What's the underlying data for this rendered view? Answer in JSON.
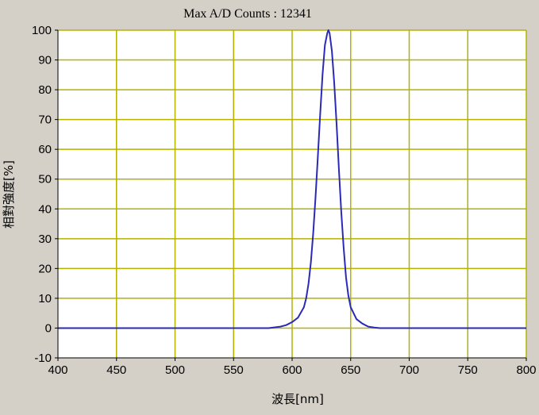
{
  "chart_data": {
    "type": "line",
    "title": "Max A/D Counts : 12341",
    "xlabel": "波長[nm]",
    "ylabel": "相對強度[%]",
    "xlim": [
      400,
      800
    ],
    "ylim": [
      -10,
      100
    ],
    "x_ticks": [
      400,
      450,
      500,
      550,
      600,
      650,
      700,
      750,
      800
    ],
    "y_ticks": [
      -10,
      0,
      10,
      20,
      30,
      40,
      50,
      60,
      70,
      80,
      90,
      100
    ],
    "grid": true,
    "colors": {
      "background": "#d4d0c8",
      "plot_area": "#ffffff",
      "grid": "#b3b300",
      "line": "#2a2ab8"
    },
    "series": [
      {
        "x": [
          400,
          450,
          500,
          540,
          560,
          580,
          590,
          595,
          600,
          605,
          610,
          612,
          614,
          616,
          618,
          620,
          622,
          624,
          626,
          628,
          630,
          631,
          632,
          634,
          636,
          638,
          640,
          642,
          644,
          646,
          648,
          650,
          655,
          660,
          665,
          670,
          675,
          680,
          700,
          750,
          800
        ],
        "y": [
          0,
          0,
          0,
          0,
          0,
          0,
          0.5,
          1,
          2,
          3.5,
          7,
          10,
          15,
          22,
          32,
          44,
          58,
          72,
          85,
          95,
          99,
          100,
          99,
          93,
          82,
          68,
          53,
          39,
          27,
          17,
          11,
          7,
          3,
          1.5,
          0.5,
          0.2,
          0,
          0,
          0,
          0,
          0
        ]
      }
    ]
  }
}
